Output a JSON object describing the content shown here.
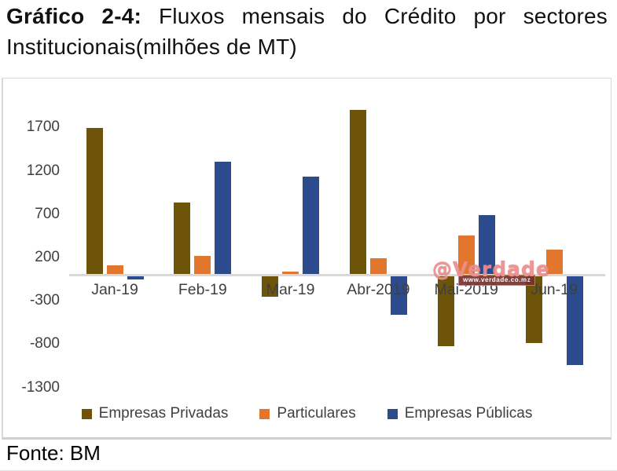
{
  "title": {
    "prefix": "Gráfico 2-4:",
    "rest": " Fluxos mensais do Crédito por sectores Institucionais(milhões de MT)"
  },
  "source": "Fonte: BM",
  "watermark": {
    "handle": "@Verdade",
    "url": "www.verdade.co.mz"
  },
  "chart_data": {
    "type": "bar",
    "title": "Fluxos mensais do Crédito por sectores Institucionais (milhões de MT)",
    "categories": [
      "Jan-19",
      "Feb-19",
      "Mar-19",
      "Abr-2019",
      "Mai-2019",
      "Jun-19"
    ],
    "series": [
      {
        "name": "Empresas Privadas",
        "color": "#6E5408",
        "values": [
          1690,
          830,
          -250,
          1900,
          -820,
          -790
        ]
      },
      {
        "name": "Particulares",
        "color": "#E2762D",
        "values": [
          110,
          220,
          40,
          190,
          450,
          290
        ]
      },
      {
        "name": "Empresas Públicas",
        "color": "#2B4B8E",
        "values": [
          -50,
          1300,
          1130,
          -460,
          690,
          -1040
        ]
      }
    ],
    "y_ticks": [
      1700,
      1200,
      700,
      200,
      -300,
      -800,
      -1300
    ],
    "ylim": [
      -1500,
      2050
    ],
    "xlabel": "",
    "ylabel": "",
    "grid": false,
    "legend_position": "bottom",
    "axis_line_color": "#D9D9D9",
    "tick_label_color": "#3F3F3F"
  }
}
